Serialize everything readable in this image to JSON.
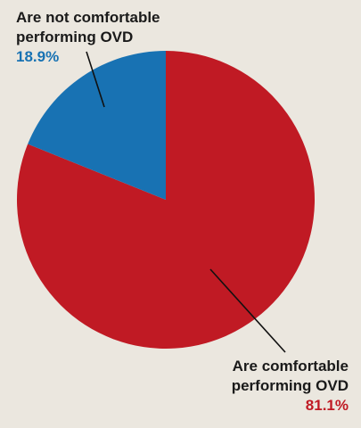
{
  "chart_data": {
    "type": "pie",
    "slices": [
      {
        "label": "Are not comfortable performing OVD",
        "label_lines": [
          "Are not comfortable",
          "performing OVD"
        ],
        "value": 18.9,
        "value_text": "18.9%",
        "color": "#1872b3"
      },
      {
        "label": "Are comfortable performing OVD",
        "label_lines": [
          "Are comfortable",
          "performing OVD"
        ],
        "value": 81.1,
        "value_text": "81.1%",
        "color": "#c01a24"
      }
    ],
    "start": "12 o'clock",
    "direction": "counterclockwise for first slice",
    "legend": "callout labels with leader lines"
  },
  "colors": {
    "background": "#ebe7df",
    "blue": "#1872b3",
    "red": "#c01a24",
    "leader": "#111111"
  }
}
